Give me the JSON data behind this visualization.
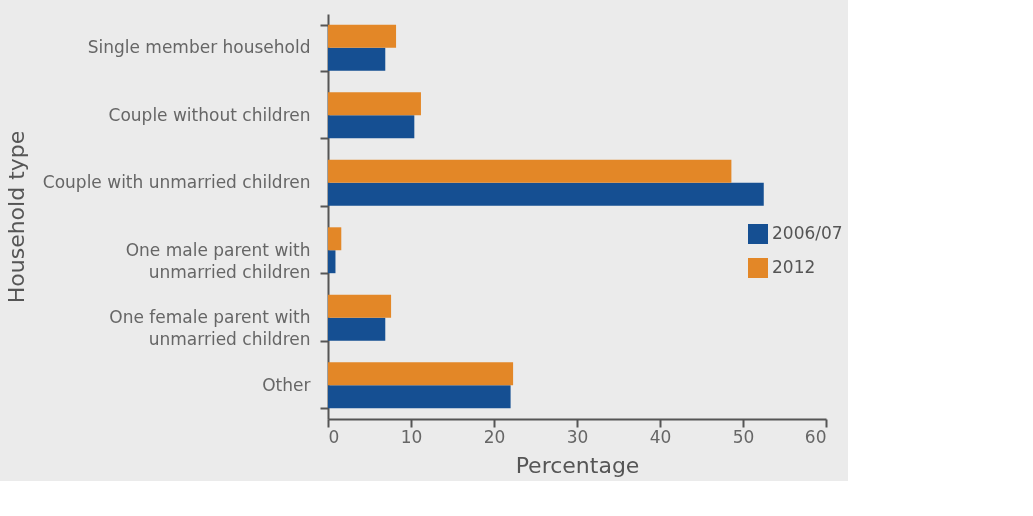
{
  "chart_data": {
    "type": "bar",
    "orientation": "horizontal",
    "xlabel": "Percentage",
    "ylabel": "Household type",
    "categories": [
      "Single member household",
      "Couple without children",
      "Couple with unmarried children",
      "One male parent with\nunmarried children",
      "One female parent with\nunmarried children",
      "Other"
    ],
    "series": [
      {
        "name": "2006/07",
        "color": "#154f92",
        "values": [
          6.9,
          10.4,
          52.5,
          0.9,
          6.9,
          22.0
        ]
      },
      {
        "name": "2012",
        "color": "#e38727",
        "values": [
          8.2,
          11.2,
          48.6,
          1.6,
          7.6,
          22.3
        ]
      }
    ],
    "xlim": [
      0,
      60
    ],
    "xticks": [
      0,
      10,
      20,
      30,
      40,
      50,
      60
    ],
    "grid": false,
    "legend": "right"
  }
}
